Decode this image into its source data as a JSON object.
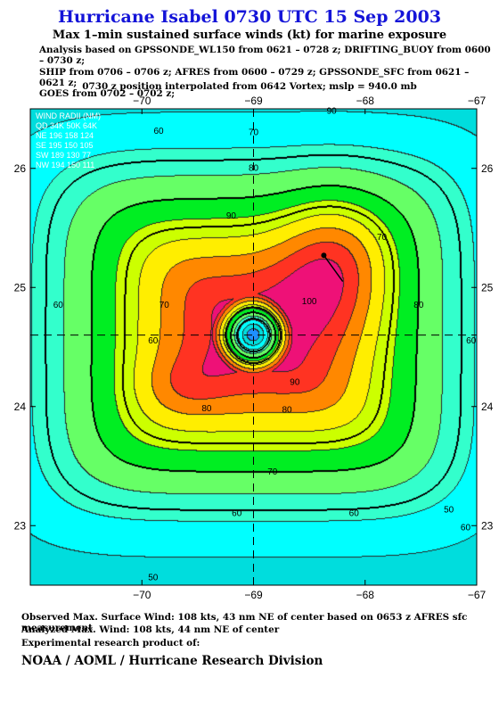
{
  "header": {
    "title": "Hurricane Isabel 0730 UTC 15 Sep 2003",
    "subtitle": "Max 1–min sustained surface winds (kt) for marine exposure",
    "analysis_lines": [
      "Analysis based on  GPSSONDE_WL150 from 0621 – 0728 z;  DRIFTING_BUOY from 0600 – 0730 z;",
      "SHIP from 0706 – 0706 z;  AFRES from 0600 – 0729 z;  GPSSONDE_SFC from 0621 – 0621 z;",
      "GOES from 0702 – 0702 z;"
    ],
    "position_line": "0730 z position interpolated from 0642 Vortex; mslp = 940.0 mb"
  },
  "wind_radii": {
    "header": "WIND RADII (NM)",
    "columns_line": "QD  34K  50K  64K",
    "rows": [
      "NE  196  158  124",
      "SE  195  150  105",
      "SW  189  130   77",
      "NW  194  150  111"
    ]
  },
  "chart_data": {
    "type": "contour",
    "quantity": "Max 1-min sustained surface winds (kt)",
    "xlim": [
      -71,
      -67
    ],
    "ylim": [
      22.5,
      26.5
    ],
    "x_ticks": [
      -70,
      -69,
      -68,
      -67
    ],
    "x_tick_labels": [
      "−70",
      "−69",
      "−68",
      "−67"
    ],
    "y_ticks": [
      23,
      24,
      25,
      26
    ],
    "y_tick_labels": [
      "23",
      "24",
      "25",
      "26"
    ],
    "storm_center": [
      -69,
      24.6
    ],
    "max_wind_point": [
      -68.37,
      25.27
    ],
    "max_wind_vector_end": [
      -68.2,
      25.05
    ],
    "contour_levels": [
      10,
      20,
      30,
      40,
      50,
      60,
      70,
      80,
      90,
      100,
      110
    ],
    "bold_contours": [
      34,
      50,
      64
    ],
    "fill_colors": {
      "lt10": "#1e90ff",
      "10_20": "#00dddd",
      "20_30": "#00ffff",
      "30_40": "#33ffcc",
      "40_50": "#66ff66",
      "50_60": "#00ee22",
      "60_70": "#ccff00",
      "70_80": "#ffee00",
      "80_90": "#ff8800",
      "90_100": "#ff3322",
      "100_110": "#ee1177",
      "gt110": "#ff00cc"
    },
    "contour_labels": [
      {
        "text": "90",
        "lon": -68.3,
        "lat": 26.48
      },
      {
        "text": "60",
        "lon": -69.85,
        "lat": 26.31
      },
      {
        "text": "70",
        "lon": -69.0,
        "lat": 26.3
      },
      {
        "text": "80",
        "lon": -69.0,
        "lat": 26.0
      },
      {
        "text": "90",
        "lon": -69.2,
        "lat": 25.6
      },
      {
        "text": "70",
        "lon": -67.85,
        "lat": 25.42
      },
      {
        "text": "80",
        "lon": -67.52,
        "lat": 24.85
      },
      {
        "text": "100",
        "lon": -68.5,
        "lat": 24.88
      },
      {
        "text": "70",
        "lon": -69.8,
        "lat": 24.85
      },
      {
        "text": "60",
        "lon": -69.9,
        "lat": 24.55
      },
      {
        "text": "60",
        "lon": -70.75,
        "lat": 24.85
      },
      {
        "text": "90",
        "lon": -68.63,
        "lat": 24.2
      },
      {
        "text": "80",
        "lon": -69.42,
        "lat": 23.98
      },
      {
        "text": "80",
        "lon": -68.7,
        "lat": 23.97
      },
      {
        "text": "70",
        "lon": -68.83,
        "lat": 23.45
      },
      {
        "text": "60",
        "lon": -69.15,
        "lat": 23.1
      },
      {
        "text": "60",
        "lon": -68.1,
        "lat": 23.1
      },
      {
        "text": "60",
        "lon": -67.1,
        "lat": 22.98
      },
      {
        "text": "50",
        "lon": -67.25,
        "lat": 23.13
      },
      {
        "text": "50",
        "lon": -69.9,
        "lat": 22.56
      },
      {
        "text": "60",
        "lon": -67.05,
        "lat": 24.55
      }
    ]
  },
  "footer": {
    "observed": "Observed Max. Surface Wind: 108 kts, 43 nm NE of center based on 0653 z AFRES sfc measurement",
    "analyzed": "Analyzed Max. Wind: 108 kts, 44 nm NE of center",
    "experimental": "Experimental research product of:",
    "org": "NOAA / AOML / Hurricane Research Division"
  }
}
